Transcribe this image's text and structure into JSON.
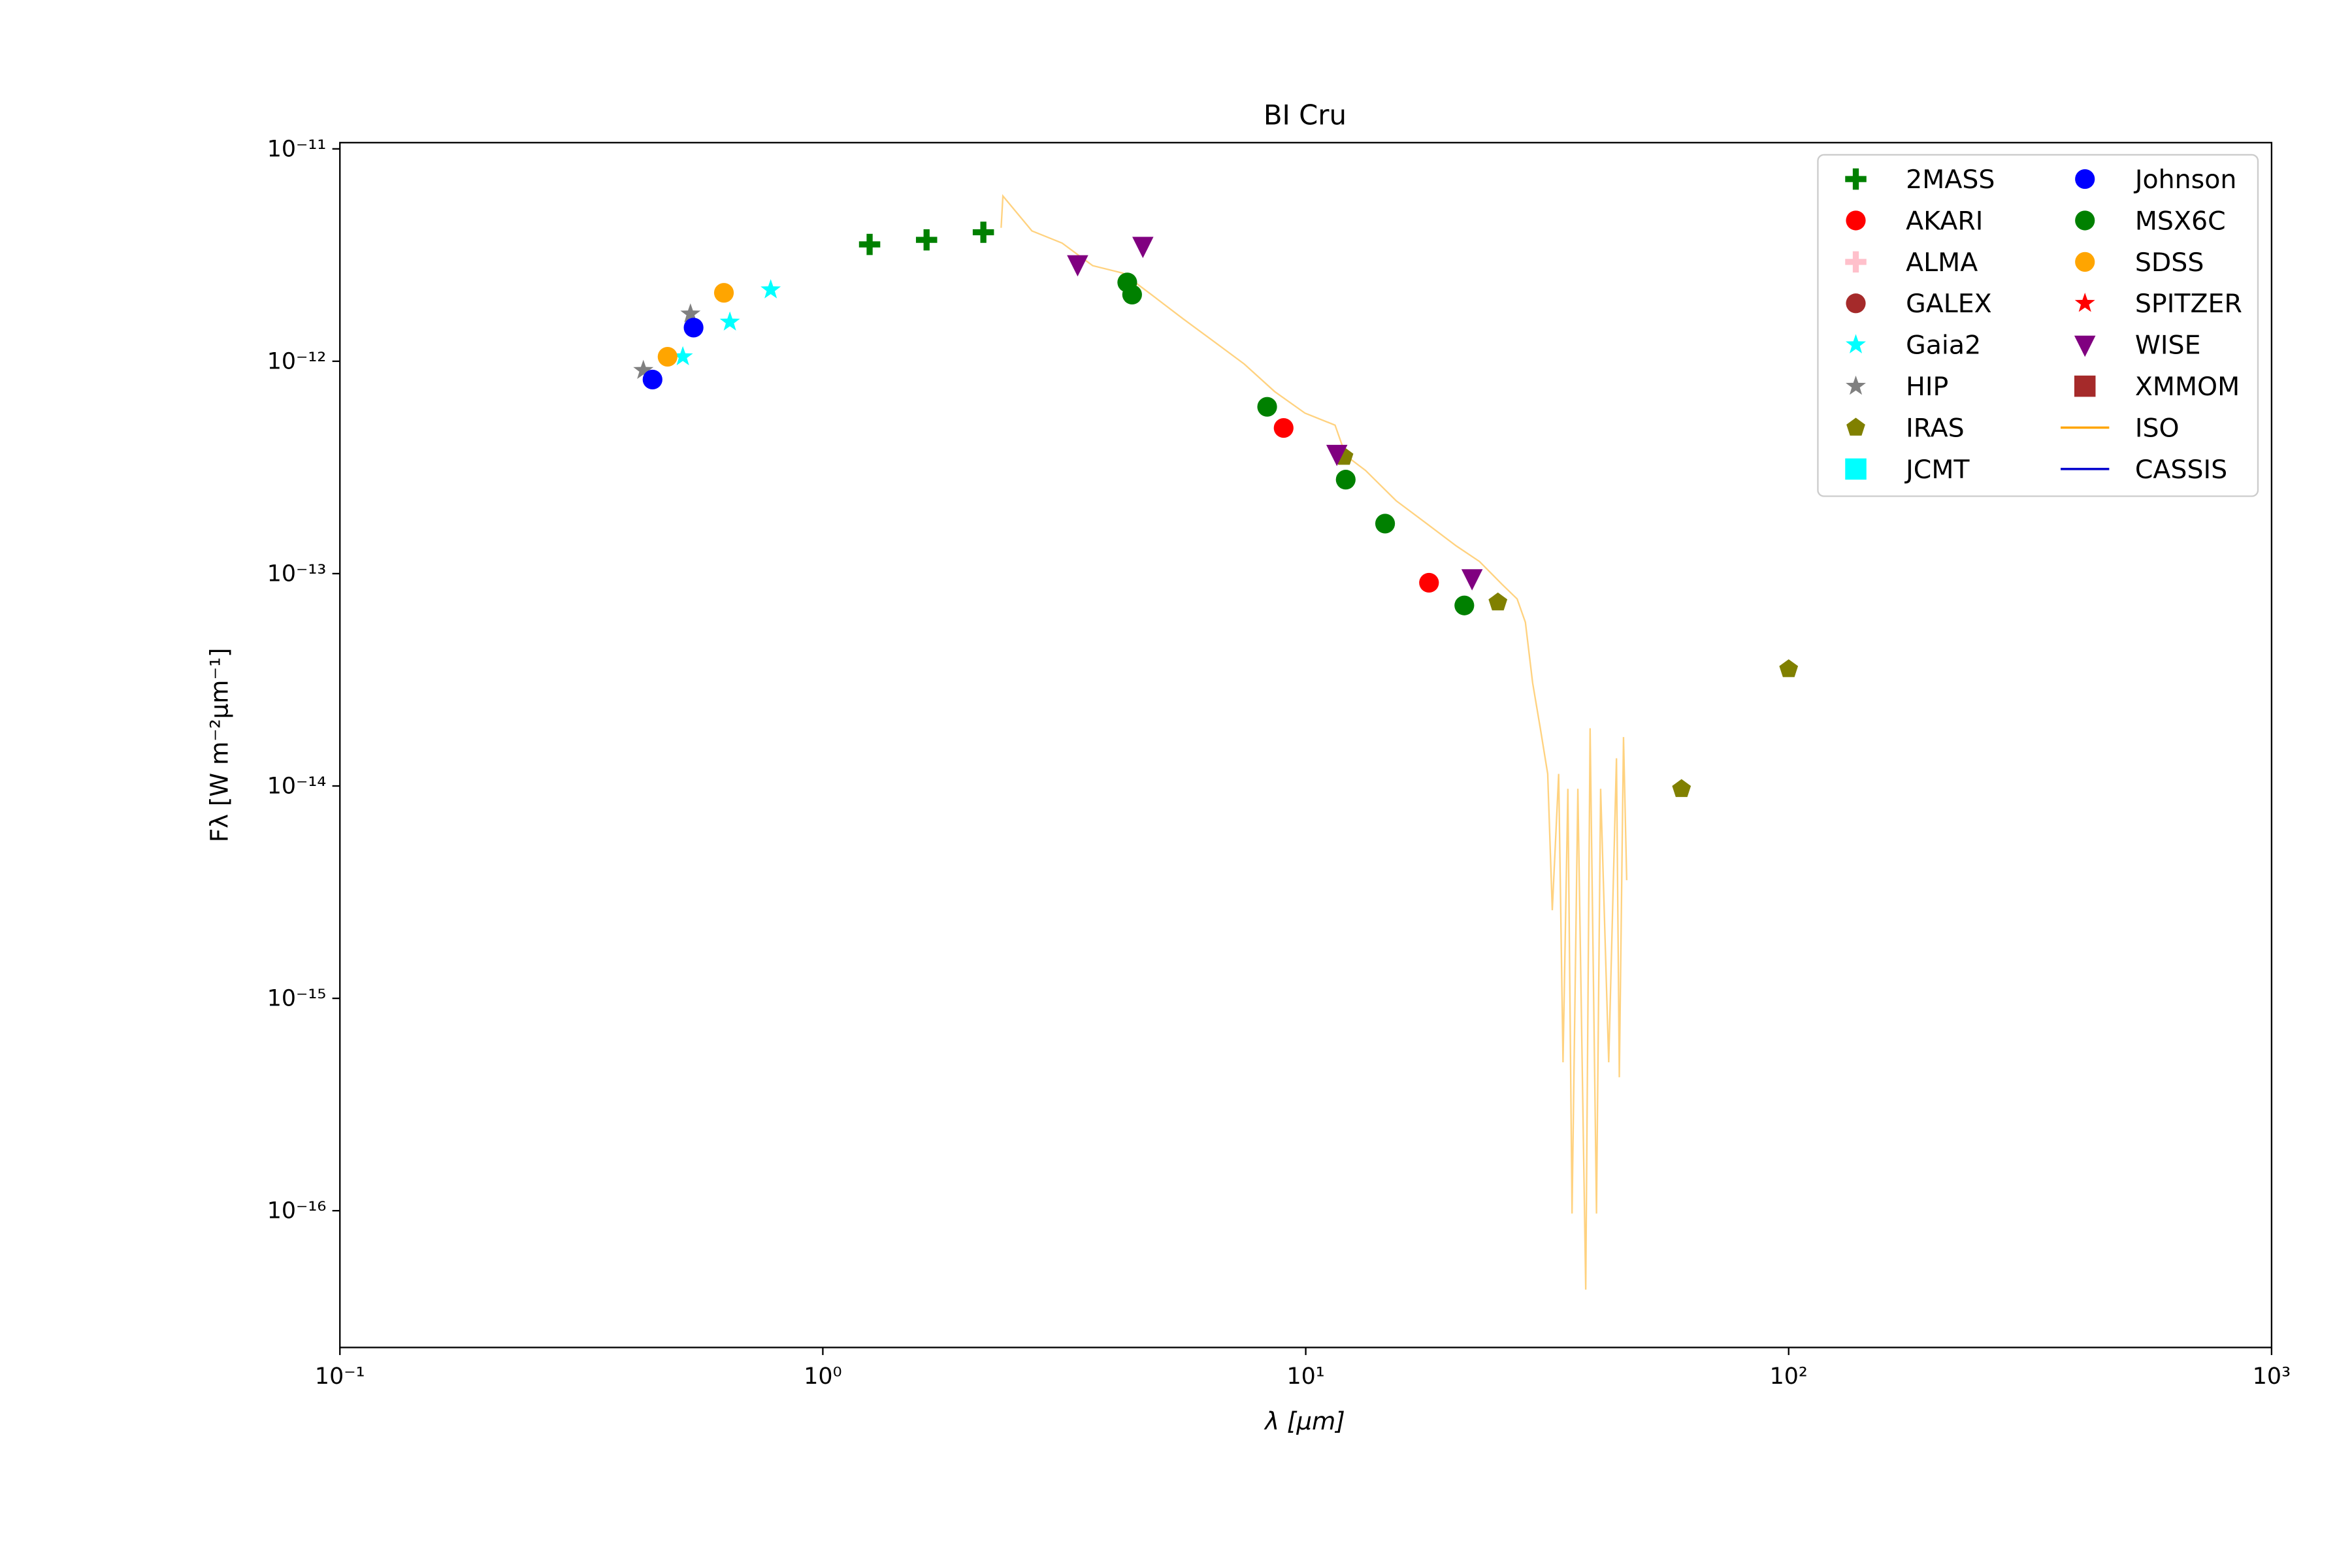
{
  "chart_data": {
    "type": "scatter",
    "title": "BI Cru",
    "x_label": "λ [μm]",
    "y_label": "Fλ [W m⁻²μm⁻¹]",
    "xscale": "log",
    "yscale": "log",
    "xlim": [
      0.1,
      1000
    ],
    "ylim": [
      2.27e-17,
      1.07e-11
    ],
    "xticks": [
      {
        "value": 0.1,
        "label": "10⁻¹"
      },
      {
        "value": 1,
        "label": "10⁰"
      },
      {
        "value": 10,
        "label": "10¹"
      },
      {
        "value": 100,
        "label": "10²"
      },
      {
        "value": 1000,
        "label": "10³"
      }
    ],
    "yticks": [
      {
        "value": 1e-16,
        "label": "10⁻¹⁶"
      },
      {
        "value": 1e-15,
        "label": "10⁻¹⁵"
      },
      {
        "value": 1e-14,
        "label": "10⁻¹⁴"
      },
      {
        "value": 1e-13,
        "label": "10⁻¹³"
      },
      {
        "value": 1e-12,
        "label": "10⁻¹²"
      },
      {
        "value": 1e-11,
        "label": "10⁻¹¹"
      }
    ],
    "legend": "upper right",
    "series": [
      {
        "name": "2MASS",
        "color": "#008000",
        "marker": "plus",
        "x": [
          1.25,
          1.64,
          2.15
        ],
        "values": [
          3.55e-12,
          3.73e-12,
          4.05e-12
        ]
      },
      {
        "name": "AKARI",
        "color": "#ff0000",
        "marker": "circle",
        "x": [
          9.0,
          18.0
        ],
        "values": [
          4.85e-13,
          9.06e-14
        ]
      },
      {
        "name": "ALMA",
        "color": "#ffc0cb",
        "marker": "plus",
        "x": [],
        "values": []
      },
      {
        "name": "GALEX",
        "color": "#a52a2a",
        "marker": "circle",
        "x": [],
        "values": []
      },
      {
        "name": "Gaia2",
        "color": "#00ffff",
        "marker": "star",
        "x": [
          0.513,
          0.642,
          0.78
        ],
        "values": [
          1.05e-12,
          1.53e-12,
          2.17e-12
        ]
      },
      {
        "name": "HIP",
        "color": "#808080",
        "marker": "star",
        "x": [
          0.425,
          0.532
        ],
        "values": [
          9.06e-13,
          1.67e-12
        ]
      },
      {
        "name": "IRAS",
        "color": "#808000",
        "marker": "pentagon",
        "x": [
          12,
          25,
          60,
          100
        ],
        "values": [
          3.55e-13,
          7.32e-14,
          9.68e-15,
          3.55e-14
        ]
      },
      {
        "name": "JCMT",
        "color": "#00ffff",
        "marker": "square",
        "x": [],
        "values": []
      },
      {
        "name": "Johnson",
        "color": "#0000ff",
        "marker": "circle",
        "x": [
          0.444,
          0.54
        ],
        "values": [
          8.2e-13,
          1.44e-12
        ]
      },
      {
        "name": "MSX6C",
        "color": "#008000",
        "marker": "circle",
        "x": [
          4.27,
          4.37,
          8.32,
          12.1,
          14.6,
          21.3
        ],
        "values": [
          2.35e-12,
          2.06e-12,
          6.1e-13,
          2.77e-13,
          1.72e-13,
          7.08e-14
        ]
      },
      {
        "name": "SDSS",
        "color": "#ffa500",
        "marker": "circle",
        "x": [
          0.477,
          0.624
        ],
        "values": [
          1.05e-12,
          2.1e-12
        ]
      },
      {
        "name": "SPITZER",
        "color": "#ff0000",
        "marker": "star",
        "x": [],
        "values": []
      },
      {
        "name": "WISE",
        "color": "#800080",
        "marker": "triangle-down",
        "x": [
          3.37,
          4.6,
          11.6,
          22.1
        ],
        "values": [
          2.86e-12,
          3.49e-12,
          3.66e-13,
          9.5e-14
        ]
      },
      {
        "name": "XMMOM",
        "color": "#a52a2a",
        "marker": "square",
        "x": [],
        "values": []
      },
      {
        "name": "ISO",
        "color": "#ffa500",
        "marker": "line",
        "x": [
          2.34,
          2.36,
          2.71,
          3.13,
          3.62,
          4.18,
          4.83,
          5.58,
          6.45,
          7.46,
          8.62,
          9.96,
          11.5,
          12.1,
          13.3,
          15.4,
          17.8,
          20.5,
          22.9,
          25.5,
          27.4,
          28.5,
          29.5,
          30.6,
          31.7,
          32.4,
          33.4,
          34.1,
          34.9,
          35.6,
          36.6,
          38.0,
          38.8,
          40.0,
          40.8,
          42.4,
          44.0,
          44.6,
          45.5,
          46.2
        ],
        "values": [
          4.25e-12,
          6e-12,
          4.11e-12,
          3.6e-12,
          2.82e-12,
          2.6e-12,
          2.03e-12,
          1.58e-12,
          1.24e-12,
          9.7e-13,
          7.2e-13,
          5.7e-13,
          5e-13,
          3.6e-13,
          3.06e-13,
          2.2e-13,
          1.72e-13,
          1.35e-13,
          1.14e-13,
          8.9e-14,
          7.6e-14,
          5.9e-14,
          3.06e-14,
          1.87e-14,
          1.14e-14,
          2.6e-15,
          1.14e-14,
          5e-16,
          9.7e-15,
          9.7e-17,
          9.7e-15,
          4.25e-17,
          1.87e-14,
          9.7e-17,
          9.7e-15,
          5e-16,
          1.35e-14,
          4.25e-16,
          1.7e-14,
          3.6e-15
        ]
      },
      {
        "name": "CASSIS",
        "color": "#0000cd",
        "marker": "line",
        "x": [],
        "values": []
      }
    ]
  }
}
